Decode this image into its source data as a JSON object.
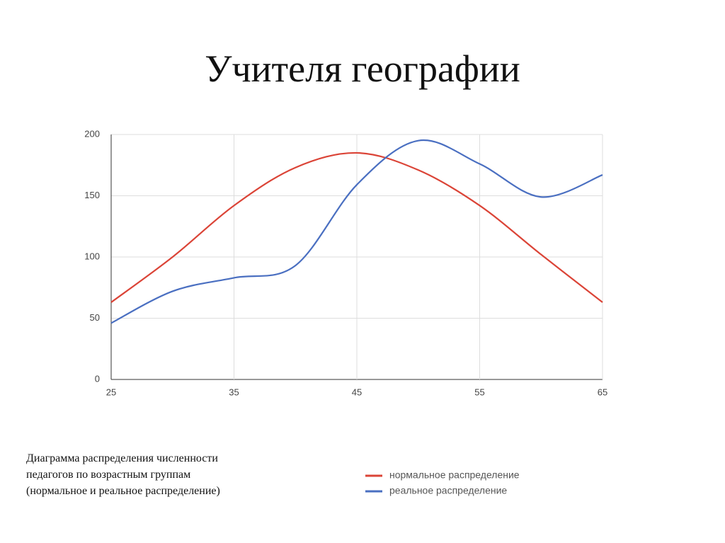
{
  "chart_data": {
    "type": "line",
    "title": "Учителя географии",
    "x": [
      25,
      30,
      35,
      40,
      45,
      50,
      55,
      60,
      65
    ],
    "series": [
      {
        "name": "нормальное распределение",
        "color": "#db4437",
        "values": [
          63,
          100,
          142,
          173,
          185,
          171,
          142,
          102,
          63
        ]
      },
      {
        "name": "реальное распределение",
        "color": "#4a6fc1",
        "values": [
          46,
          72,
          83,
          93,
          159,
          195,
          176,
          149,
          167
        ]
      }
    ],
    "xlim": [
      25,
      65
    ],
    "xticks": [
      25,
      35,
      45,
      55,
      65
    ],
    "ylim": [
      0,
      200
    ],
    "yticks": [
      0,
      50,
      100,
      150,
      200
    ],
    "grid": true,
    "annotations": [
      "Диаграмма распределения численности",
      "педагогов по возрастным группам",
      "(нормальное и реальное распределение)"
    ]
  }
}
